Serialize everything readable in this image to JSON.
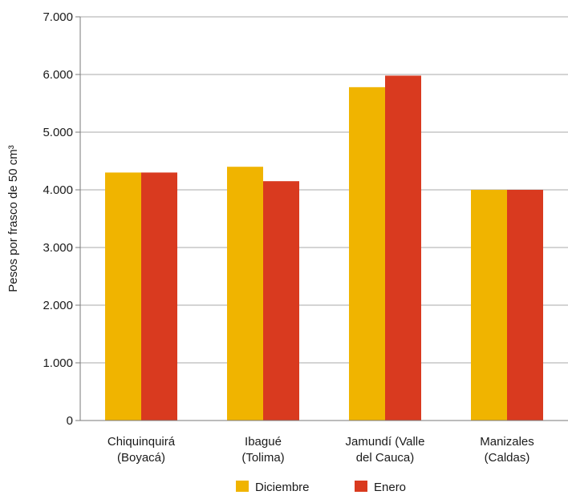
{
  "chart_data": {
    "type": "bar",
    "ylabel": "Pesos por frasco de 50 cm³",
    "ylim": [
      0,
      7000
    ],
    "yticks": [
      "0",
      "1.000",
      "2.000",
      "3.000",
      "4.000",
      "5.000",
      "6.000",
      "7.000"
    ],
    "ytick_values": [
      0,
      1000,
      2000,
      3000,
      4000,
      5000,
      6000,
      7000
    ],
    "grid": true,
    "legend_position": "bottom",
    "categories": [
      [
        "Chiquinquirá",
        "(Boyacá)"
      ],
      [
        "Ibagué",
        "(Tolima)"
      ],
      [
        "Jamundí (Valle",
        "del Cauca)"
      ],
      [
        "Manizales",
        "(Caldas)"
      ]
    ],
    "series": [
      {
        "name": "Diciembre",
        "color": "#F0B400",
        "values": [
          4300,
          4400,
          5780,
          4000
        ]
      },
      {
        "name": "Enero",
        "color": "#D93A1F",
        "values": [
          4300,
          4150,
          5980,
          4000
        ]
      }
    ]
  }
}
